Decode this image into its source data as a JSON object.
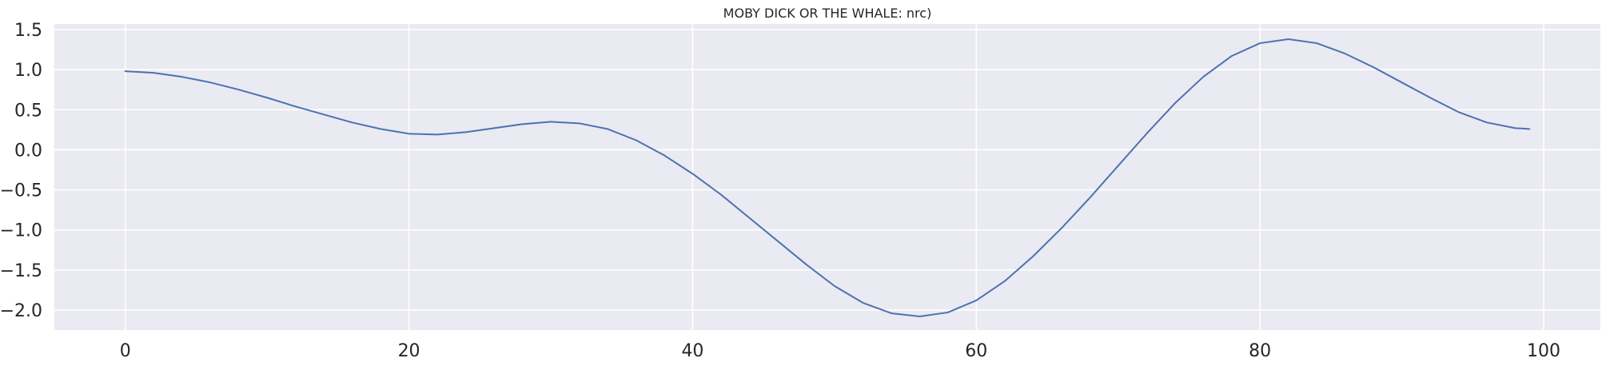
{
  "chart_data": {
    "type": "line",
    "title": "MOBY DICK OR THE WHALE: nrc)",
    "xlabel": "",
    "ylabel": "",
    "xlim": [
      -5,
      104
    ],
    "ylim": [
      -2.25,
      1.57
    ],
    "xticks": [
      0,
      20,
      40,
      60,
      80,
      100
    ],
    "yticks": [
      1.5,
      1.0,
      0.5,
      0.0,
      -0.5,
      -1.0,
      -1.5,
      -2.0
    ],
    "xtick_labels": [
      "0",
      "20",
      "40",
      "60",
      "80",
      "100"
    ],
    "ytick_labels": [
      "1.5",
      "1.0",
      "0.5",
      "0.0",
      "−0.5",
      "−1.0",
      "−1.5",
      "−2.0"
    ],
    "grid": true,
    "legend": "none",
    "colors": {
      "background": "#eaeaf2",
      "grid": "#ffffff",
      "line": "#4c72b0"
    },
    "series": [
      {
        "x": [
          0,
          2,
          4,
          6,
          8,
          10,
          12,
          14,
          16,
          18,
          20,
          22,
          24,
          26,
          28,
          30,
          32,
          34,
          36,
          38,
          40,
          42,
          44,
          46,
          48,
          50,
          52,
          54,
          56,
          58,
          60,
          62,
          64,
          66,
          68,
          70,
          72,
          74,
          76,
          78,
          80,
          82,
          84,
          86,
          88,
          90,
          92,
          94,
          96,
          98,
          99
        ],
        "y": [
          0.98,
          0.96,
          0.91,
          0.84,
          0.75,
          0.65,
          0.54,
          0.44,
          0.34,
          0.26,
          0.2,
          0.19,
          0.22,
          0.27,
          0.32,
          0.35,
          0.33,
          0.26,
          0.12,
          -0.07,
          -0.3,
          -0.56,
          -0.85,
          -1.14,
          -1.43,
          -1.7,
          -1.91,
          -2.04,
          -2.08,
          -2.03,
          -1.88,
          -1.64,
          -1.33,
          -0.98,
          -0.6,
          -0.2,
          0.2,
          0.58,
          0.91,
          1.17,
          1.33,
          1.38,
          1.33,
          1.2,
          1.03,
          0.84,
          0.65,
          0.47,
          0.34,
          0.27,
          0.26
        ]
      }
    ]
  }
}
